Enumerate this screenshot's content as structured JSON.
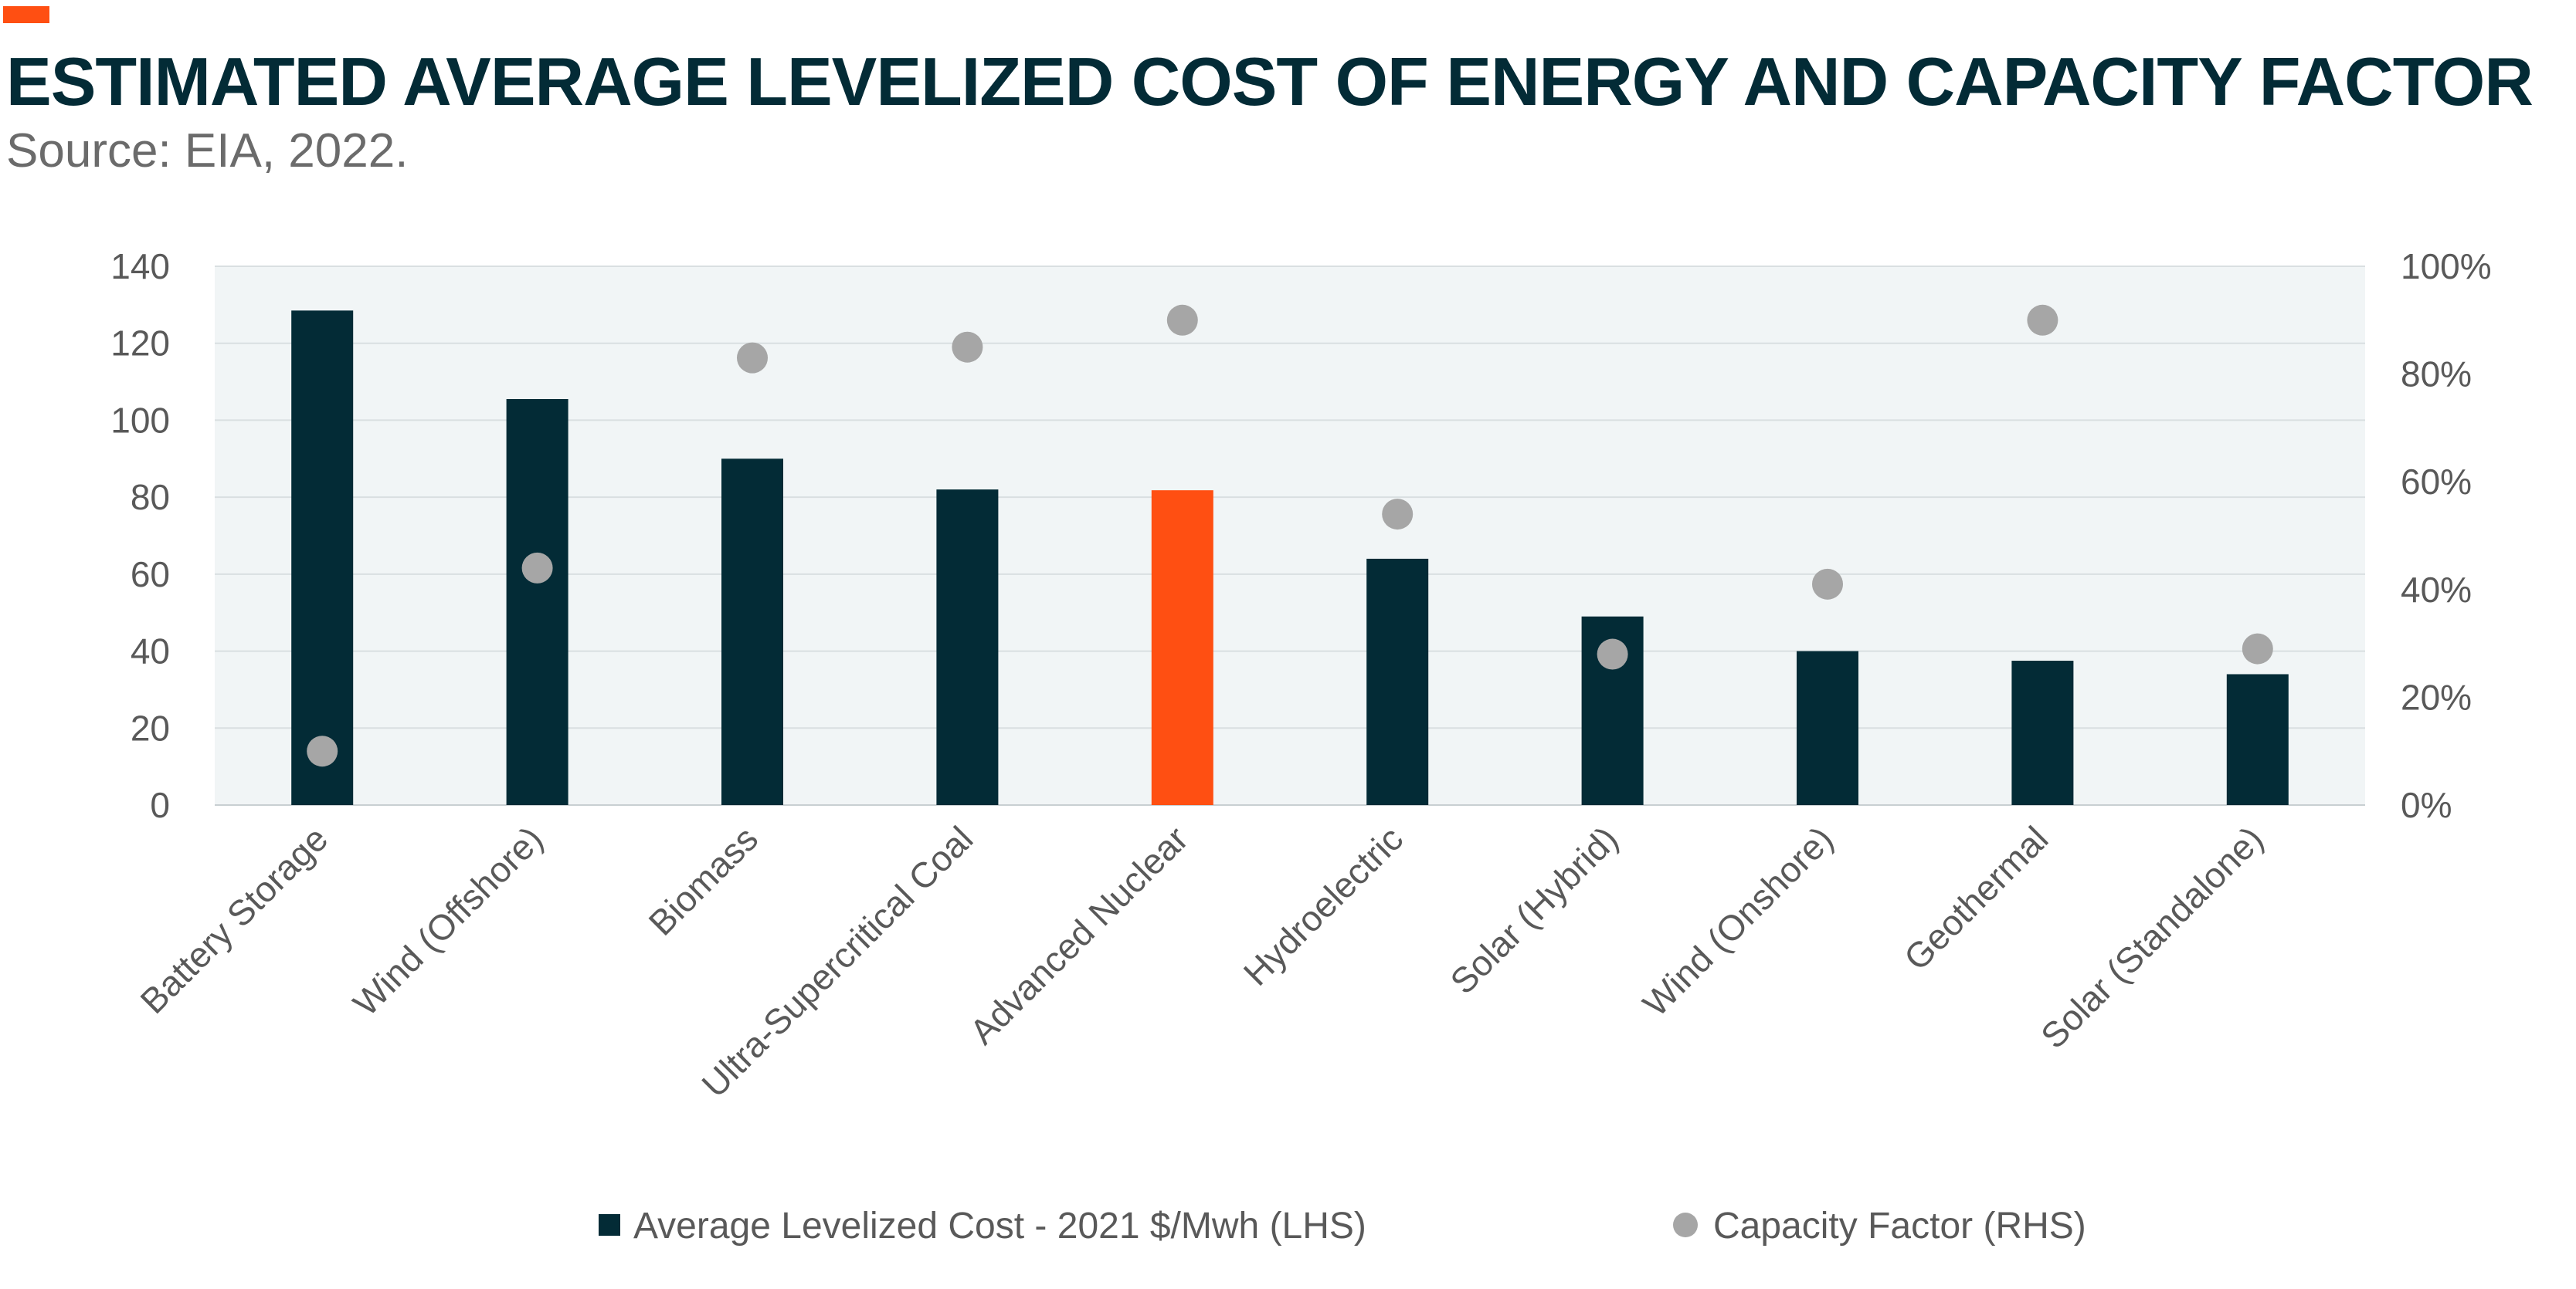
{
  "title": "ESTIMATED AVERAGE LEVELIZED COST OF ENERGY AND CAPACITY FACTOR",
  "subtitle": "Source: EIA, 2022.",
  "colors": {
    "accent": "#ff4f12",
    "bar": "#032b36",
    "highlight": "#ff4f12",
    "dot": "#a6a6a6",
    "plot_bg": "#f1f5f6",
    "grid": "#d9dfe1"
  },
  "chart_data": {
    "type": "bar",
    "title": "ESTIMATED AVERAGE LEVELIZED COST OF ENERGY AND CAPACITY FACTOR",
    "categories": [
      "Battery Storage",
      "Wind (Offshore)",
      "Biomass",
      "Ultra-Supercritical Coal",
      "Advanced Nuclear",
      "Hydroelectric",
      "Solar (Hybrid)",
      "Wind (Onshore)",
      "Geothermal",
      "Solar (Standalone)"
    ],
    "highlight_category": "Advanced Nuclear",
    "series": [
      {
        "name": "Average Levelized Cost - 2021 $/Mwh (LHS)",
        "type": "bar",
        "axis": "left",
        "values": [
          128.5,
          105.5,
          90,
          82,
          81.8,
          64,
          49,
          40,
          37.5,
          34
        ]
      },
      {
        "name": "Capacity Factor (RHS)",
        "type": "scatter",
        "axis": "right",
        "values": [
          10,
          44,
          83,
          85,
          90,
          54,
          28,
          41,
          90,
          29
        ]
      }
    ],
    "y_left": {
      "min": 0,
      "max": 140,
      "ticks": [
        "0",
        "20",
        "40",
        "60",
        "80",
        "100",
        "120",
        "140"
      ]
    },
    "y_right": {
      "min": 0,
      "max": 100,
      "ticks": [
        "0%",
        "20%",
        "40%",
        "60%",
        "80%",
        "100%"
      ]
    },
    "grid": true,
    "legend_position": "bottom"
  }
}
